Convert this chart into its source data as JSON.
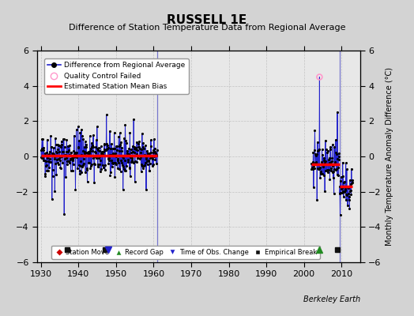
{
  "title": "RUSSELL 1E",
  "subtitle": "Difference of Station Temperature Data from Regional Average",
  "ylabel": "Monthly Temperature Anomaly Difference (°C)",
  "watermark": "Berkeley Earth",
  "xlim": [
    1929,
    2015
  ],
  "ylim": [
    -6,
    6
  ],
  "yticks": [
    -6,
    -4,
    -2,
    0,
    2,
    4,
    6
  ],
  "xticks": [
    1930,
    1940,
    1950,
    1960,
    1970,
    1980,
    1990,
    2000,
    2010
  ],
  "bg_color": "#d3d3d3",
  "plot_bg_color": "#e8e8e8",
  "line_color": "#2222cc",
  "dot_color": "#000000",
  "bias_color": "#ff0000",
  "qc_color": "#ff99cc",
  "vertical_line_color": "#7777cc",
  "grid_color": "#bbbbbb",
  "segment1_start": 1930.0,
  "segment1_end": 1961.0,
  "segment1_bias": 0.05,
  "segment2_start": 2002.0,
  "segment2_end": 2009.5,
  "segment2_bias": -0.45,
  "segment3_start": 2009.5,
  "segment3_end": 2013.0,
  "segment3_bias": -1.7,
  "vertical_lines": [
    1961.0,
    2009.5
  ],
  "empirical_break_years": [
    1937,
    1947,
    2009
  ],
  "record_gap_years": [
    2004
  ],
  "obs_change_years": [
    1948
  ],
  "station_move_years": [],
  "qc_fail_year": 2004.2,
  "qc_fail_value": 4.5,
  "marker_y": -5.3,
  "title_fontsize": 11,
  "subtitle_fontsize": 8,
  "tick_fontsize": 8,
  "ylabel_fontsize": 7
}
